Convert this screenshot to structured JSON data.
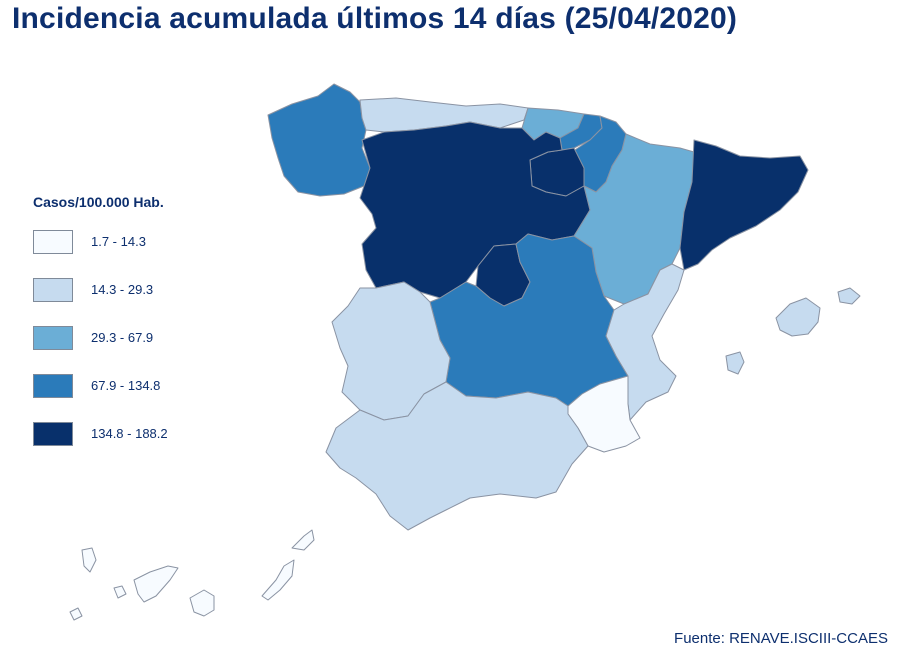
{
  "title": "Incidencia acumulada últimos 14 días (25/04/2020)",
  "legend": {
    "title": "Casos/100.000 Hab.",
    "items": [
      {
        "label": "1.7 - 14.3",
        "color": "#f7fbff"
      },
      {
        "label": "14.3 - 29.3",
        "color": "#c6dbef"
      },
      {
        "label": "29.3 - 67.9",
        "color": "#6baed6"
      },
      {
        "label": "67.9 - 134.8",
        "color": "#2b7bba"
      },
      {
        "label": "134.8 - 188.2",
        "color": "#08306b"
      }
    ]
  },
  "source": "Fuente: RENAVE.ISCIII-CCAES",
  "regions": [
    {
      "name": "Galicia",
      "class": 3
    },
    {
      "name": "Asturias",
      "class": 1
    },
    {
      "name": "Cantabria",
      "class": 2
    },
    {
      "name": "País Vasco",
      "class": 3
    },
    {
      "name": "Navarra",
      "class": 3
    },
    {
      "name": "La Rioja",
      "class": 4
    },
    {
      "name": "Castilla y León",
      "class": 4
    },
    {
      "name": "Aragón",
      "class": 2
    },
    {
      "name": "Cataluña",
      "class": 4
    },
    {
      "name": "Madrid",
      "class": 4
    },
    {
      "name": "Castilla-La Mancha",
      "class": 3
    },
    {
      "name": "Extremadura",
      "class": 1
    },
    {
      "name": "Comunitat Valenciana",
      "class": 1
    },
    {
      "name": "Región de Murcia",
      "class": 0
    },
    {
      "name": "Andalucía",
      "class": 1
    },
    {
      "name": "Illes Balears",
      "class": 1
    },
    {
      "name": "Canarias",
      "class": 0
    }
  ]
}
